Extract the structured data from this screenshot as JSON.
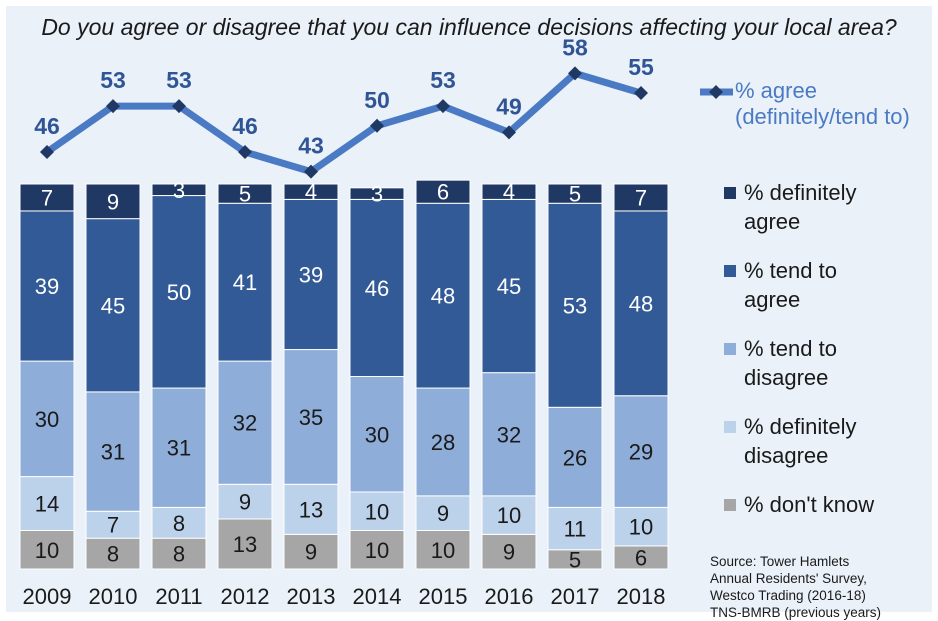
{
  "title": "Do you agree or disagree that you can influence decisions affecting your local area?",
  "source_lines": [
    "Source: Tower Hamlets",
    "Annual Residents' Survey,",
    "Westco Trading (2016-18)",
    "TNS-BMRB  (previous years)"
  ],
  "legend": {
    "line_label_1": "% agree",
    "line_label_2": "(definitely/tend to)",
    "items": [
      {
        "label_1": "% definitely",
        "label_2": "agree",
        "color": "#1f3864"
      },
      {
        "label_1": "% tend to",
        "label_2": "agree",
        "color": "#325a96"
      },
      {
        "label_1": "% tend to",
        "label_2": "disagree",
        "color": "#8eadd8"
      },
      {
        "label_1": "% definitely",
        "label_2": "disagree",
        "color": "#bcd1ea"
      },
      {
        "label_1": "% don't know",
        "label_2": "",
        "color": "#a6a6a6"
      }
    ]
  },
  "chart_data": {
    "type": "bar",
    "stacked": true,
    "normalized": true,
    "categories": [
      "2009",
      "2010",
      "2011",
      "2012",
      "2013",
      "2014",
      "2015",
      "2016",
      "2017",
      "2018"
    ],
    "series": [
      {
        "name": "% don't know",
        "color": "#a6a6a6",
        "values": [
          10,
          8,
          8,
          13,
          9,
          10,
          10,
          9,
          5,
          6
        ]
      },
      {
        "name": "% definitely disagree",
        "color": "#bcd1ea",
        "values": [
          14,
          7,
          8,
          9,
          13,
          10,
          9,
          10,
          11,
          10
        ]
      },
      {
        "name": "% tend to disagree",
        "color": "#8eadd8",
        "values": [
          30,
          31,
          31,
          32,
          35,
          30,
          28,
          32,
          26,
          29
        ]
      },
      {
        "name": "% tend to agree",
        "color": "#325a96",
        "values": [
          39,
          45,
          50,
          41,
          39,
          46,
          48,
          45,
          53,
          48
        ]
      },
      {
        "name": "% definitely agree",
        "color": "#1f3864",
        "values": [
          7,
          9,
          3,
          5,
          4,
          3,
          6,
          4,
          5,
          7
        ]
      }
    ],
    "line": {
      "name": "% agree (definitely/tend to)",
      "color": "#4a7ac4",
      "values": [
        46,
        53,
        53,
        46,
        43,
        50,
        53,
        49,
        58,
        55
      ]
    }
  }
}
